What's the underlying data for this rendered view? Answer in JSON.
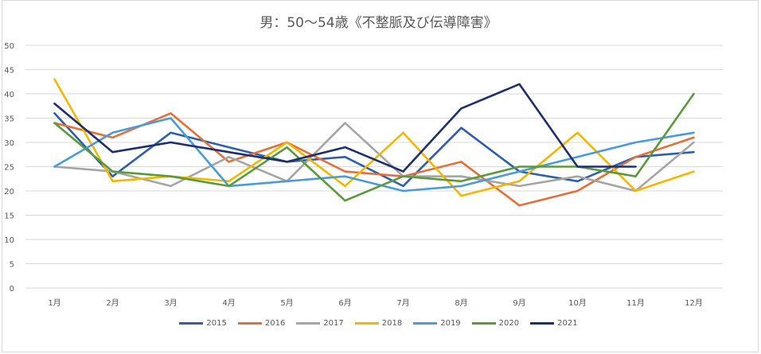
{
  "chart_data": {
    "type": "line",
    "title": "男：50～54歳《不整脈及び伝導障害》",
    "xlabel": "",
    "ylabel": "",
    "ylim": [
      0,
      50
    ],
    "yticks": [
      "0",
      "5",
      "10",
      "15",
      "20",
      "25",
      "30",
      "35",
      "40",
      "45",
      "50"
    ],
    "grid": true,
    "legend_position": "bottom",
    "categories": [
      "1月",
      "2月",
      "3月",
      "4月",
      "5月",
      "6月",
      "7月",
      "8月",
      "9月",
      "10月",
      "11月",
      "12月"
    ],
    "series": [
      {
        "name": "2015",
        "color": "#2e5fa8",
        "values": [
          36,
          23,
          32,
          29,
          26,
          27,
          21,
          33,
          24,
          22,
          27,
          28
        ]
      },
      {
        "name": "2016",
        "color": "#e2703a",
        "values": [
          34,
          31,
          36,
          26,
          30,
          24,
          23,
          26,
          17,
          20,
          27,
          31
        ]
      },
      {
        "name": "2017",
        "color": "#a5a5a5",
        "values": [
          25,
          24,
          21,
          27,
          22,
          34,
          23,
          23,
          21,
          23,
          20,
          30
        ]
      },
      {
        "name": "2018",
        "color": "#f2b800",
        "values": [
          43,
          22,
          23,
          22,
          30,
          21,
          32,
          19,
          22,
          32,
          20,
          24
        ]
      },
      {
        "name": "2019",
        "color": "#4a9bd6",
        "values": [
          25,
          32,
          35,
          21,
          22,
          23,
          20,
          21,
          24,
          27,
          30,
          32
        ]
      },
      {
        "name": "2020",
        "color": "#5a9a3c",
        "values": [
          34,
          24,
          23,
          21,
          29,
          18,
          23,
          22,
          25,
          25,
          23,
          40
        ]
      },
      {
        "name": "2021",
        "color": "#1f2f6e",
        "values": [
          38,
          28,
          30,
          28,
          26,
          29,
          24,
          37,
          42,
          25,
          25,
          null
        ]
      }
    ]
  }
}
